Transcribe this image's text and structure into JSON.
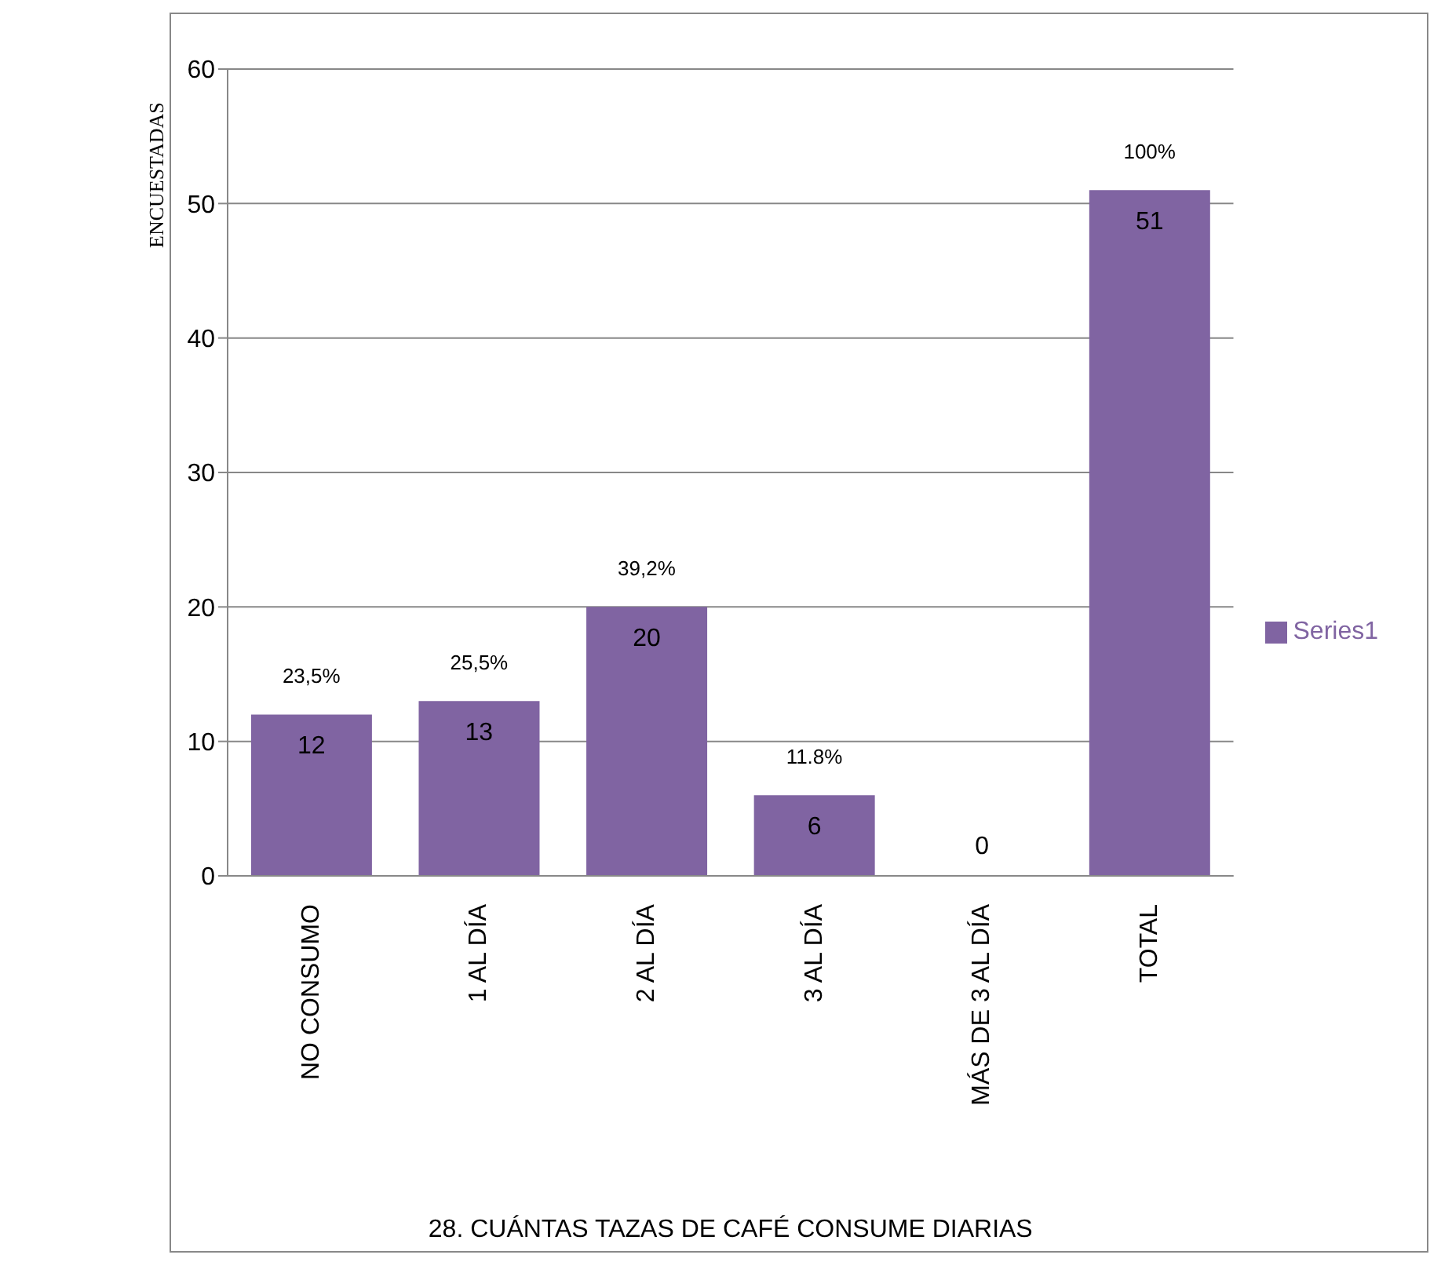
{
  "chart_data": {
    "type": "bar",
    "xlabel": "28. CUÁNTAS TAZAS DE CAFÉ CONSUME DIARIAS",
    "ylabel": "ENCUESTADAS",
    "categories": [
      "NO CONSUMO",
      "1 AL DÍA",
      "2 AL DÍA",
      "3 AL DÍA",
      "MÁS DE 3 AL DÍA",
      "TOTAL"
    ],
    "series": [
      {
        "name": "Series1",
        "color": "#8064a2",
        "values": [
          12,
          13,
          20,
          6,
          0,
          51
        ]
      }
    ],
    "ylim": [
      0,
      60
    ],
    "yticks": [
      0,
      10,
      20,
      30,
      40,
      50,
      60
    ],
    "grid": "y",
    "legend": "right",
    "data_labels": true,
    "annotations": [
      {
        "text": "23,5%",
        "x": "NO CONSUMO",
        "y": 12
      },
      {
        "text": "25,5%",
        "x": "1 AL DÍA",
        "y": 13
      },
      {
        "text": "39,2%",
        "x": "2 AL DÍA",
        "y": 20
      },
      {
        "text": "11.8%",
        "x": "3 AL DÍA",
        "y": 6
      },
      {
        "text": "100%",
        "x": "TOTAL",
        "y": 51
      }
    ]
  }
}
